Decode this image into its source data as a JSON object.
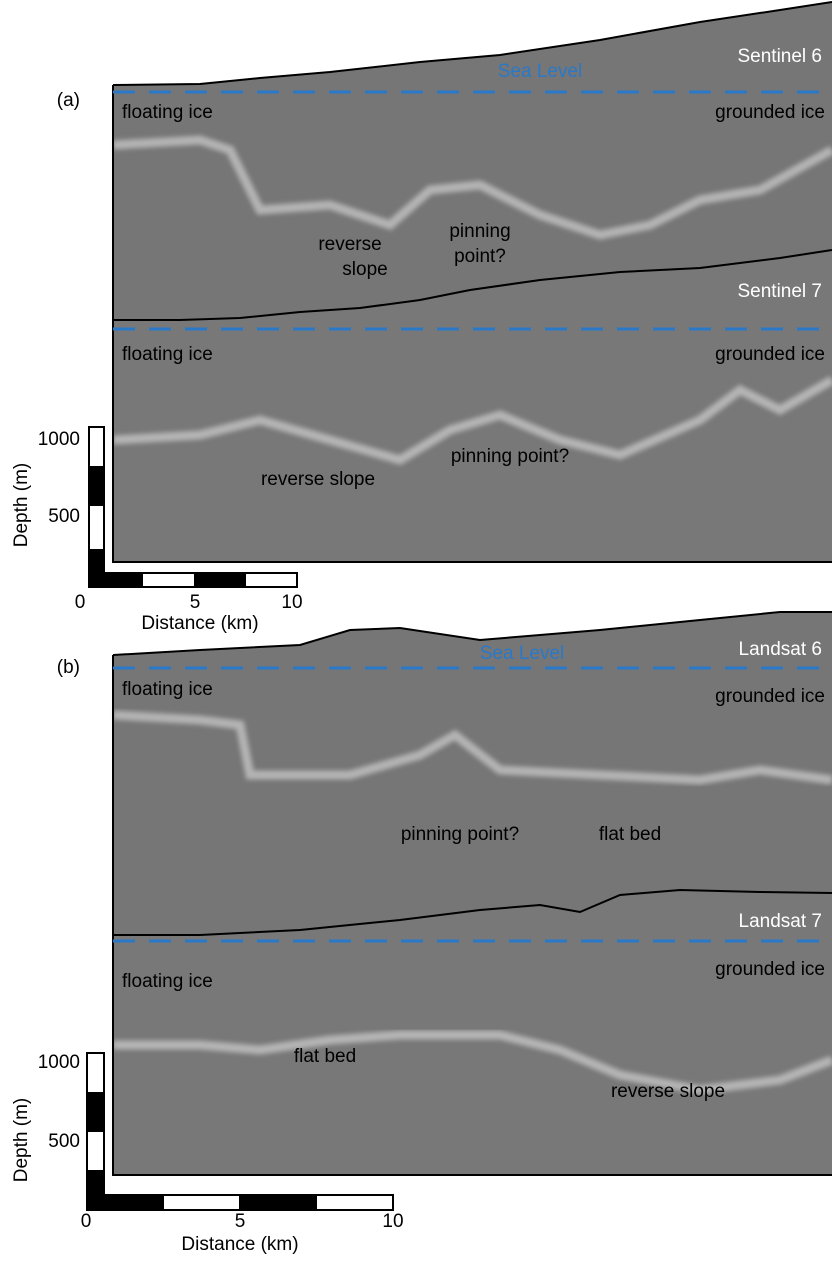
{
  "panels": [
    {
      "label": "(a)",
      "profiles": [
        {
          "name": "Sentinel 6",
          "sea_level": "Sea Level",
          "left": "floating ice",
          "right": "grounded ice",
          "annotations": [
            [
              "reverse",
              "slope"
            ],
            [
              "pinning",
              "point?"
            ]
          ]
        },
        {
          "name": "Sentinel 7",
          "left": "floating ice",
          "right": "grounded ice",
          "annotations": [
            [
              "reverse slope"
            ],
            [
              "pinning point?"
            ]
          ]
        }
      ],
      "scale": {
        "depth_label": "Depth (m)",
        "depth_ticks": [
          1000,
          500
        ],
        "distance_label": "Distance (km)",
        "distance_ticks": [
          0,
          5,
          10
        ]
      }
    },
    {
      "label": "(b)",
      "profiles": [
        {
          "name": "Landsat 6",
          "sea_level": "Sea Level",
          "left": "floating ice",
          "right": "grounded ice",
          "annotations": [
            [
              "pinning point?"
            ],
            [
              "flat bed"
            ]
          ]
        },
        {
          "name": "Landsat 7",
          "left": "floating ice",
          "right": "grounded ice",
          "annotations": [
            [
              "flat bed"
            ],
            [
              "reverse slope"
            ]
          ]
        }
      ],
      "scale": {
        "depth_label": "Depth (m)",
        "depth_ticks": [
          1000,
          500
        ],
        "distance_label": "Distance (km)",
        "distance_ticks": [
          0,
          5,
          10
        ]
      }
    }
  ]
}
